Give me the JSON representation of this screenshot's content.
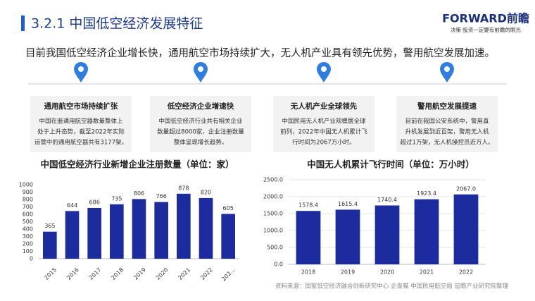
{
  "header": {
    "title": "3.2.1 中国低空经济发展特征",
    "logo": "FORWARD前瞻",
    "slogan": "决策·投资一定要有前瞻的眼光"
  },
  "summary": "目前我国低空经济企业增长快，通用航空市场持续扩大，无人机产业具有领先优势，警用航空发展加速。",
  "cards": [
    {
      "title": "通用航空市场持续扩张",
      "lines": [
        "中国在册通用航空器数量整体上",
        "处于上升态势，截至2022年实际",
        "运营中的通用航空器共有3177架。"
      ]
    },
    {
      "title": "低空经济企业增速快",
      "lines": [
        "中国低空经济行业共有相关企业",
        "数量超过8000家，企业注册数量",
        "整体呈现增长趋势。"
      ]
    },
    {
      "title": "无人机产业全球领先",
      "lines": [
        "中国民用无人机产业规模居全球",
        "前列，2022年中国无人机累计飞",
        "行时间为2067万小时。"
      ]
    },
    {
      "title": "警用航空发展提速",
      "lines": [
        "目前在我国公安系统中，警用直",
        "升机发展到近百架，警用无人机",
        "超过1万架，无人机操控员近万人。"
      ]
    }
  ],
  "chart_data": [
    {
      "type": "bar",
      "title": "中国低空经济行业新增企业注册数量（单位：家）",
      "categories": [
        "2015",
        "2016",
        "2017",
        "2018",
        "2019",
        "2020",
        "2021",
        "2022",
        "202..."
      ],
      "values": [
        365,
        644,
        686,
        735,
        806,
        766,
        878,
        820,
        605
      ],
      "color": "#1c2c9e",
      "ylim": [
        0,
        1000
      ],
      "yticks": [
        0,
        100,
        200,
        300,
        400,
        500,
        600,
        700,
        800,
        900,
        1000
      ],
      "grid": false
    },
    {
      "type": "bar",
      "title": "中国无人机累计飞行时间（单位：万小时）",
      "categories": [
        "2018",
        "2019",
        "2020",
        "2021",
        "2022"
      ],
      "values": [
        1578.4,
        1615.4,
        1740.4,
        1923.4,
        2067.0
      ],
      "value_labels": [
        "1578.4",
        "1615.4",
        "1740.4",
        "1923.4",
        "2067.0"
      ],
      "color": "#1c2c9e",
      "ylim": [
        0,
        2500
      ],
      "yticks": [
        {
          "value": 0,
          "label": "0.0"
        },
        {
          "value": 500,
          "label": "500.0"
        },
        {
          "value": 1000,
          "label": "1000.0"
        },
        {
          "value": 1500,
          "label": "1500.0"
        },
        {
          "value": 2000,
          "label": "2000.0"
        },
        {
          "value": 2500,
          "label": "2500.0"
        }
      ],
      "grid": true
    }
  ],
  "source": "资料来源：国家低空经济融合创新研究中心 企查猫 中国民用航空局 前瞻产业研究院整理"
}
